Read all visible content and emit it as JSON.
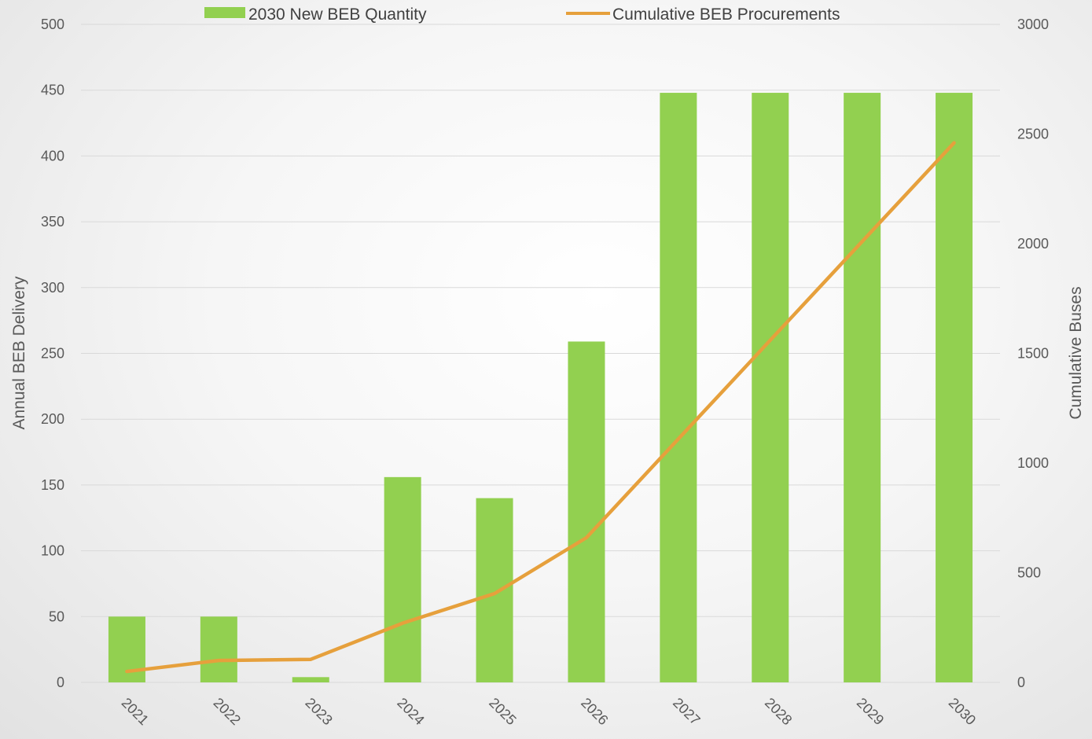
{
  "chart_data": {
    "type": "bar",
    "title": "",
    "categories": [
      "2021",
      "2022",
      "2023",
      "2024",
      "2025",
      "2026",
      "2027",
      "2028",
      "2029",
      "2030"
    ],
    "series": [
      {
        "name": "2030 New BEB Quantity",
        "type": "bar",
        "axis": "left",
        "values": [
          50,
          50,
          4,
          156,
          140,
          259,
          448,
          448,
          448,
          448
        ]
      },
      {
        "name": "Cumulative BEB Procurements",
        "type": "line",
        "axis": "right",
        "values": [
          50,
          100,
          105,
          270,
          405,
          660,
          1110,
          1560,
          2010,
          2460
        ]
      }
    ],
    "ylabel": "Annual BEB Delivery",
    "y2label": "Cumulative Buses",
    "ylim": [
      0,
      500
    ],
    "y2lim": [
      0,
      3000
    ],
    "yticks": [
      "0",
      "50",
      "100",
      "150",
      "200",
      "250",
      "300",
      "350",
      "400",
      "450",
      "500"
    ],
    "y2ticks": [
      "0",
      "500",
      "1000",
      "1500",
      "2000",
      "2500",
      "3000"
    ],
    "grid": true,
    "legend_position": "top",
    "colors": {
      "bar": "#92d050",
      "line": "#e6a03c",
      "grid": "#d9d9d9",
      "text": "#595959"
    }
  }
}
